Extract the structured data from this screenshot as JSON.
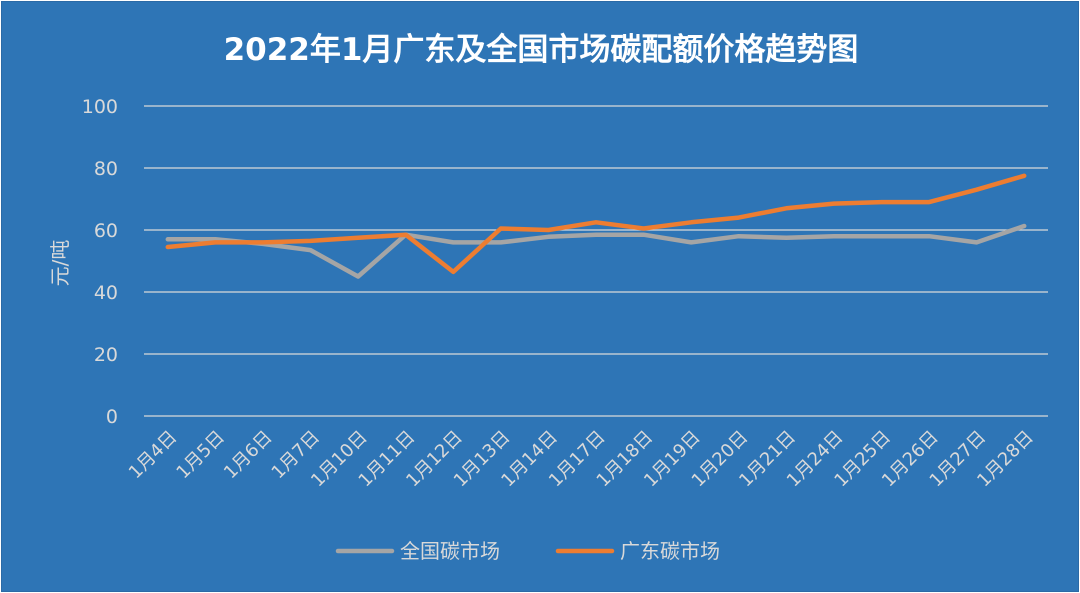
{
  "chart_data": {
    "type": "line",
    "title": "2022年1月广东及全国市场碳配额价格趋势图",
    "xlabel": "",
    "ylabel": "元/吨",
    "ylim": [
      0,
      100
    ],
    "yticks": [
      0,
      20,
      40,
      60,
      80,
      100
    ],
    "grid": true,
    "legend_position": "bottom",
    "categories": [
      "1月4日",
      "1月5日",
      "1月6日",
      "1月7日",
      "1月10日",
      "1月11日",
      "1月12日",
      "1月13日",
      "1月14日",
      "1月17日",
      "1月18日",
      "1月19日",
      "1月20日",
      "1月21日",
      "1月24日",
      "1月25日",
      "1月26日",
      "1月27日",
      "1月28日"
    ],
    "series": [
      {
        "name": "全国碳市场",
        "color": "#a5a5a5",
        "values": [
          57,
          57,
          55.5,
          53.5,
          45,
          58.5,
          56,
          56,
          57.8,
          58.5,
          58.5,
          56,
          58,
          57.5,
          58,
          58,
          58,
          56,
          61.3
        ]
      },
      {
        "name": "广东碳市场",
        "color": "#ed7d31",
        "values": [
          54.5,
          56,
          56,
          56.5,
          57.5,
          58.5,
          46.5,
          60.5,
          60,
          62.5,
          60.5,
          62.5,
          64,
          67,
          68.5,
          69,
          69,
          73,
          77.5
        ]
      }
    ]
  }
}
